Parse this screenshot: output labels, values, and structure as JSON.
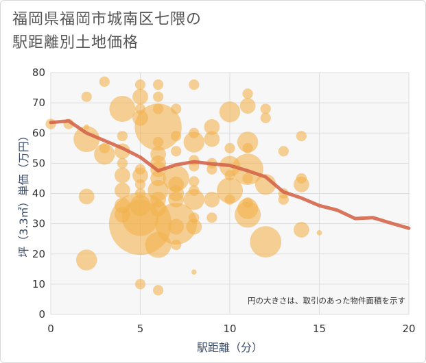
{
  "title_line1": "福岡県福岡市城南区七隈の",
  "title_line2": "駅距離別土地価格",
  "chart_data": {
    "type": "scatter",
    "xlabel": "駅距離（分）",
    "ylabel": "坪（3.3㎡）単価（万円）",
    "xlim": [
      0,
      20
    ],
    "ylim": [
      0,
      80
    ],
    "x_ticks": [
      "0",
      "5",
      "10",
      "15",
      "20"
    ],
    "y_ticks": [
      "0",
      "10",
      "20",
      "30",
      "40",
      "50",
      "60",
      "70",
      "80"
    ],
    "grid": true,
    "annotation": "円の大きさは、取引のあった物件面積を示す",
    "bubble_color": "#f2b34f",
    "line_color": "#d4664a",
    "points": [
      {
        "x": 0,
        "y": 63,
        "s": 2
      },
      {
        "x": 1,
        "y": 63,
        "s": 2
      },
      {
        "x": 2,
        "y": 72,
        "s": 2
      },
      {
        "x": 2,
        "y": 62,
        "s": 1
      },
      {
        "x": 2,
        "y": 58,
        "s": 5
      },
      {
        "x": 2,
        "y": 39,
        "s": 3
      },
      {
        "x": 2,
        "y": 18,
        "s": 4
      },
      {
        "x": 3,
        "y": 77,
        "s": 2
      },
      {
        "x": 3,
        "y": 55,
        "s": 2
      },
      {
        "x": 3,
        "y": 53,
        "s": 4
      },
      {
        "x": 4,
        "y": 68,
        "s": 5
      },
      {
        "x": 4,
        "y": 59,
        "s": 2
      },
      {
        "x": 4,
        "y": 54,
        "s": 3
      },
      {
        "x": 4,
        "y": 50,
        "s": 2
      },
      {
        "x": 4,
        "y": 46,
        "s": 3
      },
      {
        "x": 4,
        "y": 41,
        "s": 3
      },
      {
        "x": 4,
        "y": 36,
        "s": 3
      },
      {
        "x": 4,
        "y": 33,
        "s": 3
      },
      {
        "x": 5,
        "y": 76,
        "s": 2
      },
      {
        "x": 5,
        "y": 72,
        "s": 3
      },
      {
        "x": 5,
        "y": 68,
        "s": 2
      },
      {
        "x": 5,
        "y": 65,
        "s": 3
      },
      {
        "x": 5,
        "y": 48,
        "s": 2
      },
      {
        "x": 5,
        "y": 46,
        "s": 3
      },
      {
        "x": 5,
        "y": 43,
        "s": 2
      },
      {
        "x": 5,
        "y": 40,
        "s": 2
      },
      {
        "x": 5,
        "y": 36,
        "s": 4
      },
      {
        "x": 5,
        "y": 32,
        "s": 7
      },
      {
        "x": 5,
        "y": 30,
        "s": 12
      },
      {
        "x": 5,
        "y": 10,
        "s": 2
      },
      {
        "x": 6,
        "y": 76,
        "s": 2
      },
      {
        "x": 6,
        "y": 72,
        "s": 2
      },
      {
        "x": 6,
        "y": 68,
        "s": 2
      },
      {
        "x": 6,
        "y": 62,
        "s": 9
      },
      {
        "x": 6,
        "y": 57,
        "s": 2
      },
      {
        "x": 6,
        "y": 53,
        "s": 3
      },
      {
        "x": 6,
        "y": 50,
        "s": 3
      },
      {
        "x": 6,
        "y": 48,
        "s": 3
      },
      {
        "x": 6,
        "y": 45,
        "s": 3
      },
      {
        "x": 6,
        "y": 41,
        "s": 4
      },
      {
        "x": 6,
        "y": 38,
        "s": 3
      },
      {
        "x": 6,
        "y": 35,
        "s": 3
      },
      {
        "x": 6,
        "y": 23,
        "s": 5
      },
      {
        "x": 6,
        "y": 8,
        "s": 2
      },
      {
        "x": 7,
        "y": 68,
        "s": 2
      },
      {
        "x": 7,
        "y": 59,
        "s": 2
      },
      {
        "x": 7,
        "y": 54,
        "s": 2
      },
      {
        "x": 7,
        "y": 45,
        "s": 5
      },
      {
        "x": 7,
        "y": 43,
        "s": 3
      },
      {
        "x": 7,
        "y": 40,
        "s": 3
      },
      {
        "x": 7,
        "y": 38,
        "s": 3
      },
      {
        "x": 7,
        "y": 30,
        "s": 8
      },
      {
        "x": 7,
        "y": 29,
        "s": 3
      },
      {
        "x": 7,
        "y": 23,
        "s": 2
      },
      {
        "x": 8,
        "y": 76,
        "s": 2
      },
      {
        "x": 8,
        "y": 60,
        "s": 2
      },
      {
        "x": 8,
        "y": 57,
        "s": 4
      },
      {
        "x": 8,
        "y": 51,
        "s": 2
      },
      {
        "x": 8,
        "y": 49,
        "s": 2
      },
      {
        "x": 8,
        "y": 44,
        "s": 2
      },
      {
        "x": 8,
        "y": 41,
        "s": 2
      },
      {
        "x": 8,
        "y": 38,
        "s": 4
      },
      {
        "x": 8,
        "y": 32,
        "s": 2
      },
      {
        "x": 8,
        "y": 29,
        "s": 3
      },
      {
        "x": 8,
        "y": 14,
        "s": 1
      },
      {
        "x": 9,
        "y": 62,
        "s": 3
      },
      {
        "x": 9,
        "y": 58,
        "s": 3
      },
      {
        "x": 9,
        "y": 50,
        "s": 2
      },
      {
        "x": 9,
        "y": 48,
        "s": 2
      },
      {
        "x": 9,
        "y": 38,
        "s": 3
      },
      {
        "x": 9,
        "y": 32,
        "s": 2
      },
      {
        "x": 10,
        "y": 67,
        "s": 4
      },
      {
        "x": 10,
        "y": 55,
        "s": 2
      },
      {
        "x": 10,
        "y": 49,
        "s": 4
      },
      {
        "x": 10,
        "y": 46,
        "s": 2
      },
      {
        "x": 10,
        "y": 41,
        "s": 5
      },
      {
        "x": 10,
        "y": 38,
        "s": 2
      },
      {
        "x": 11,
        "y": 73,
        "s": 2
      },
      {
        "x": 11,
        "y": 69,
        "s": 3
      },
      {
        "x": 11,
        "y": 57,
        "s": 4
      },
      {
        "x": 11,
        "y": 55,
        "s": 2
      },
      {
        "x": 11,
        "y": 48,
        "s": 6
      },
      {
        "x": 11,
        "y": 45,
        "s": 2
      },
      {
        "x": 11,
        "y": 37,
        "s": 2
      },
      {
        "x": 11,
        "y": 35,
        "s": 4
      },
      {
        "x": 11,
        "y": 33,
        "s": 5
      },
      {
        "x": 12,
        "y": 68,
        "s": 2
      },
      {
        "x": 12,
        "y": 65,
        "s": 2
      },
      {
        "x": 12,
        "y": 43,
        "s": 4
      },
      {
        "x": 12,
        "y": 24,
        "s": 6
      },
      {
        "x": 13,
        "y": 54,
        "s": 2
      },
      {
        "x": 13,
        "y": 40,
        "s": 2
      },
      {
        "x": 13,
        "y": 38,
        "s": 2
      },
      {
        "x": 14,
        "y": 59,
        "s": 2
      },
      {
        "x": 14,
        "y": 45,
        "s": 2
      },
      {
        "x": 14,
        "y": 43,
        "s": 3
      },
      {
        "x": 14,
        "y": 28,
        "s": 3
      },
      {
        "x": 15,
        "y": 27,
        "s": 1
      }
    ],
    "trend_line": {
      "x": [
        0,
        1,
        2,
        3,
        4,
        5,
        6,
        7,
        8,
        9,
        10,
        11,
        12,
        13,
        14,
        15,
        16,
        17,
        18,
        19,
        20
      ],
      "y": [
        63.5,
        64,
        60,
        57.5,
        55,
        52,
        47.5,
        49.5,
        50.5,
        49.8,
        49.3,
        47.5,
        45.5,
        40.5,
        38.5,
        36,
        34.5,
        31.7,
        32,
        30.2,
        28.5
      ]
    }
  }
}
